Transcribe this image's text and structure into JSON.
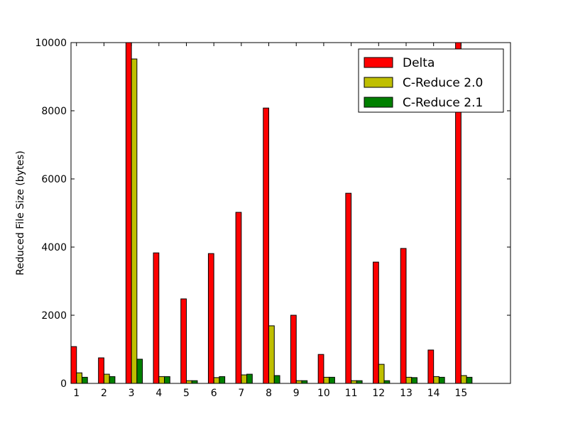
{
  "chart_data": {
    "type": "bar",
    "y_label": "Reduced File Size (bytes)",
    "categories": [
      "1",
      "2",
      "3",
      "4",
      "5",
      "6",
      "7",
      "8",
      "9",
      "10",
      "11",
      "12",
      "13",
      "14",
      "15"
    ],
    "series": [
      {
        "name": "Delta",
        "color": "#ff0000",
        "values": [
          1080,
          750,
          10000,
          3830,
          2480,
          3810,
          5020,
          8080,
          2000,
          850,
          5580,
          3560,
          3960,
          980,
          10000
        ]
      },
      {
        "name": "C-Reduce 2.0",
        "color": "#bfbf00",
        "values": [
          310,
          270,
          9520,
          200,
          80,
          170,
          250,
          1690,
          80,
          180,
          80,
          560,
          180,
          200,
          230
        ]
      },
      {
        "name": "C-Reduce 2.1",
        "color": "#008000",
        "values": [
          180,
          200,
          710,
          200,
          80,
          200,
          270,
          230,
          80,
          180,
          80,
          80,
          170,
          180,
          180
        ]
      }
    ],
    "ylim": [
      0,
      10000
    ],
    "yticks": [
      0,
      2000,
      4000,
      6000,
      8000,
      10000
    ],
    "grid": false,
    "legend": "upper right"
  }
}
